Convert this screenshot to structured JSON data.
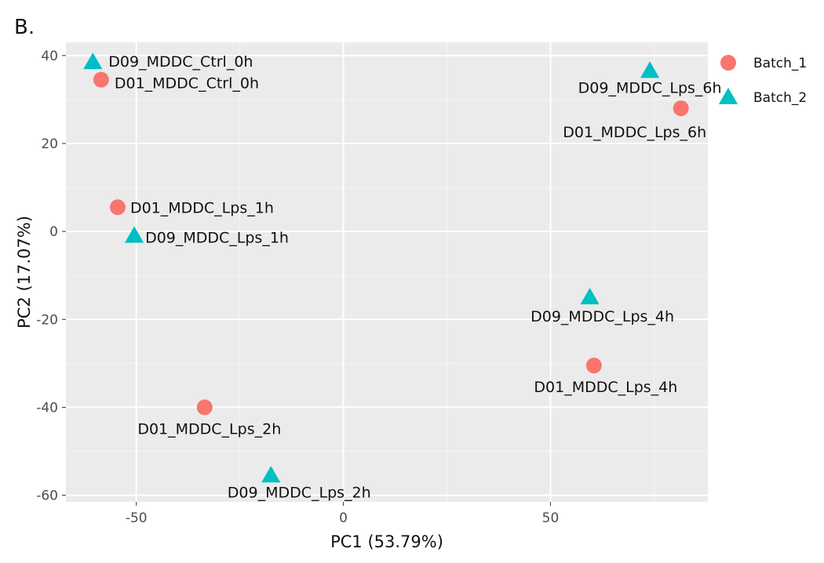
{
  "panel_label": "B.",
  "chart_data": {
    "type": "scatter",
    "title": "",
    "xlabel": "PC1 (53.79%)",
    "ylabel": "PC2 (17.07%)",
    "xlim": [
      -67,
      88
    ],
    "ylim": [
      -61.5,
      43
    ],
    "xticks": [
      -50,
      0,
      50
    ],
    "yticks": [
      -60,
      -40,
      -20,
      0,
      20,
      40
    ],
    "grid": true,
    "legend_position": "right",
    "series": [
      {
        "name": "Batch_1",
        "marker": "circle",
        "color": "#F8766D",
        "points": [
          {
            "x": -58.5,
            "y": 34.5,
            "label": "D01_MDDC_Ctrl_0h"
          },
          {
            "x": -54.5,
            "y": 5.5,
            "label": "D01_MDDC_Lps_1h"
          },
          {
            "x": -33.5,
            "y": -40.0,
            "label": "D01_MDDC_Lps_2h"
          },
          {
            "x": 60.5,
            "y": -30.5,
            "label": "D01_MDDC_Lps_4h"
          },
          {
            "x": 81.5,
            "y": 28.0,
            "label": "D01_MDDC_Lps_6h"
          }
        ]
      },
      {
        "name": "Batch_2",
        "marker": "triangle",
        "color": "#00BFC4",
        "points": [
          {
            "x": -60.5,
            "y": 38.5,
            "label": "D09_MDDC_Ctrl_0h"
          },
          {
            "x": -50.5,
            "y": -1.0,
            "label": "D09_MDDC_Lps_1h"
          },
          {
            "x": -17.5,
            "y": -55.5,
            "label": "D09_MDDC_Lps_2h"
          },
          {
            "x": 59.5,
            "y": -15.0,
            "label": "D09_MDDC_Lps_4h"
          },
          {
            "x": 74.0,
            "y": 36.5,
            "label": "D09_MDDC_Lps_6h"
          }
        ]
      }
    ]
  }
}
